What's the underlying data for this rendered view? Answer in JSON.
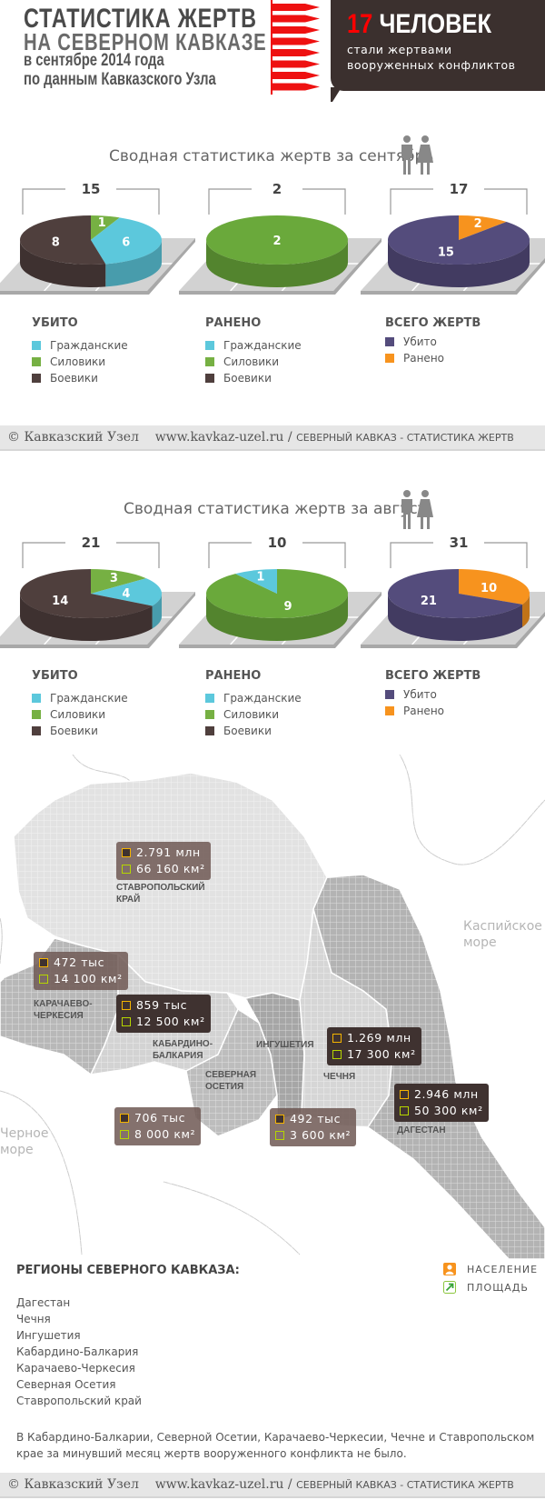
{
  "header": {
    "title1": "СТАТИСТИКА ЖЕРТВ",
    "title2": "НА СЕВЕРНОМ КАВКАЗЕ",
    "title3": "в сентябре 2014 года",
    "title4": "по данным Кавказского Узла",
    "count": "17",
    "count_word": "ЧЕЛОВЕК",
    "count_sub": "стали жертвами вооруженных конфликтов",
    "bullet_color": "#ee1111"
  },
  "sections": [
    {
      "title": "Сводная статистика жертв за сентябрь"
    },
    {
      "title": "Сводная статистика жертв за август"
    }
  ],
  "footer": {
    "copyright": "© Кавказский Узел",
    "url": "www.kavkaz-uzel.ru /",
    "caption": "СЕВЕРНЫЙ КАВКАЗ - СТАТИСТИКА ЖЕРТВ"
  },
  "chart_data": [
    {
      "type": "pie",
      "period": "сентябрь",
      "title": "УБИТО",
      "total": "15",
      "slices": [
        {
          "label": "Силовики",
          "value": 1,
          "color": "#76b043"
        },
        {
          "label": "Гражданские",
          "value": 6,
          "color": "#5cc8dc"
        },
        {
          "label": "Боевики",
          "value": 8,
          "color": "#4f3f3d"
        }
      ],
      "legend": [
        {
          "label": "Гражданские",
          "color": "#5cc8dc"
        },
        {
          "label": "Силовики",
          "color": "#76b043"
        },
        {
          "label": "Боевики",
          "color": "#4f3f3d"
        }
      ]
    },
    {
      "type": "pie",
      "period": "сентябрь",
      "title": "РАНЕНО",
      "total": "2",
      "slices": [
        {
          "label": "Силовики",
          "value": 2,
          "color": "#6aa93b"
        }
      ],
      "legend": [
        {
          "label": "Гражданские",
          "color": "#5cc8dc"
        },
        {
          "label": "Силовики",
          "color": "#76b043"
        },
        {
          "label": "Боевики",
          "color": "#4f3f3d"
        }
      ]
    },
    {
      "type": "pie",
      "period": "сентябрь",
      "title": "ВСЕГО ЖЕРТВ",
      "total": "17",
      "slices": [
        {
          "label": "Ранено",
          "value": 2,
          "color": "#f7931e"
        },
        {
          "label": "Убито",
          "value": 15,
          "color": "#544c7c"
        }
      ],
      "legend": [
        {
          "label": "Убито",
          "color": "#544c7c"
        },
        {
          "label": "Ранено",
          "color": "#f7931e"
        }
      ]
    },
    {
      "type": "pie",
      "period": "август",
      "title": "УБИТО",
      "total": "21",
      "slices": [
        {
          "label": "Силовики",
          "value": 3,
          "color": "#76b043"
        },
        {
          "label": "Гражданские",
          "value": 4,
          "color": "#5cc8dc"
        },
        {
          "label": "Боевики",
          "value": 14,
          "color": "#4f3f3d"
        }
      ],
      "legend": [
        {
          "label": "Гражданские",
          "color": "#5cc8dc"
        },
        {
          "label": "Силовики",
          "color": "#76b043"
        },
        {
          "label": "Боевики",
          "color": "#4f3f3d"
        }
      ]
    },
    {
      "type": "pie",
      "period": "август",
      "title": "РАНЕНО",
      "total": "10",
      "slices": [
        {
          "label": "Силовики",
          "value": 9,
          "color": "#6aa93b"
        },
        {
          "label": "Гражданские",
          "value": 1,
          "color": "#5cc8dc"
        }
      ],
      "legend": [
        {
          "label": "Гражданские",
          "color": "#5cc8dc"
        },
        {
          "label": "Силовики",
          "color": "#76b043"
        },
        {
          "label": "Боевики",
          "color": "#4f3f3d"
        }
      ]
    },
    {
      "type": "pie",
      "period": "август",
      "title": "ВСЕГО ЖЕРТВ",
      "total": "31",
      "slices": [
        {
          "label": "Ранено",
          "value": 10,
          "color": "#f7931e"
        },
        {
          "label": "Убито",
          "value": 21,
          "color": "#544c7c"
        }
      ],
      "legend": [
        {
          "label": "Убито",
          "color": "#544c7c"
        },
        {
          "label": "Ранено",
          "color": "#f7931e"
        }
      ]
    }
  ],
  "map": {
    "caspian": "Каспийское море",
    "black_sea": "Черное море",
    "regions": [
      {
        "name": "СТАВРОПОЛЬСКИЙ\nКРАЙ",
        "population": "2.791 млн",
        "area": "66 160 км²"
      },
      {
        "name": "КАРАЧАЕВО-\nЧЕРКЕСИЯ",
        "population": "472 тыс",
        "area": "14 100 км²"
      },
      {
        "name": "КАБАРДИНО-\nБАЛКАРИЯ",
        "population": "859 тыс",
        "area": "12 500 км²"
      },
      {
        "name": "СЕВЕРНАЯ\nОСЕТИЯ",
        "population": "706 тыс",
        "area": "8 000 км²"
      },
      {
        "name": "ИНГУШЕТИЯ",
        "population": "492 тыс",
        "area": "3 600 км²"
      },
      {
        "name": "ЧЕЧНЯ",
        "population": "1.269 млн",
        "area": "17 300 км²"
      },
      {
        "name": "ДАГЕСТАН",
        "population": "2.946 млн",
        "area": "50 300 км²"
      }
    ]
  },
  "regions_list": {
    "title": "РЕГИОНЫ СЕВЕРНОГО КАВКАЗА:",
    "items": [
      "Дагестан",
      "Чечня",
      "Ингушетия",
      "Кабардино-Балкария",
      "Карачаево-Черкесия",
      "Северная Осетия",
      "Ставропольский край"
    ],
    "legend_population": "НАСЕЛЕНИЕ",
    "legend_area": "ПЛОЩАДЬ",
    "note": "В Кабардино-Балкарии, Северной Осетии, Карачаево-Черкесии, Чечне и Ставропольском крае за минувший месяц жертв вооруженного конфликта не было."
  }
}
